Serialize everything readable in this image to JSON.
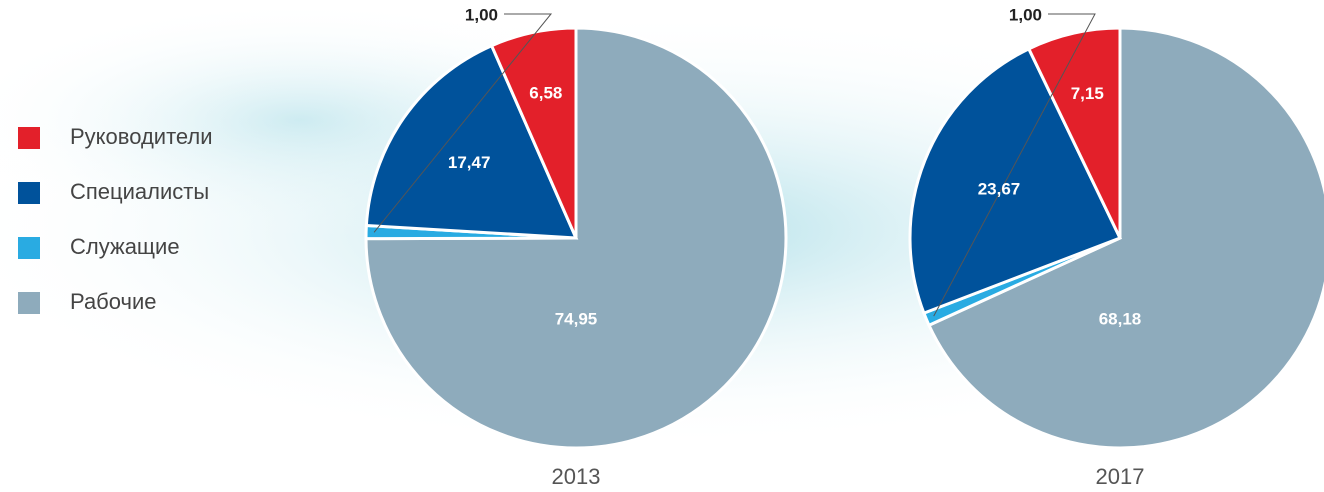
{
  "legend": {
    "items": [
      {
        "name": "Руководители",
        "color": "#e3202a"
      },
      {
        "name": "Специалисты",
        "color": "#00529b"
      },
      {
        "name": "Служащие",
        "color": "#29abe2"
      },
      {
        "name": "Рабочие",
        "color": "#8eabbc"
      }
    ]
  },
  "chart_data": [
    {
      "type": "pie",
      "title": "2013",
      "values": [
        6.58,
        17.47,
        1.0,
        74.95
      ],
      "value_labels": [
        "6,58",
        "17,47",
        "1,00",
        "74,95"
      ]
    },
    {
      "type": "pie",
      "title": "2017",
      "values": [
        7.15,
        23.67,
        1.0,
        68.18
      ],
      "value_labels": [
        "7,15",
        "23,67",
        "1,00",
        "68,18"
      ]
    }
  ]
}
